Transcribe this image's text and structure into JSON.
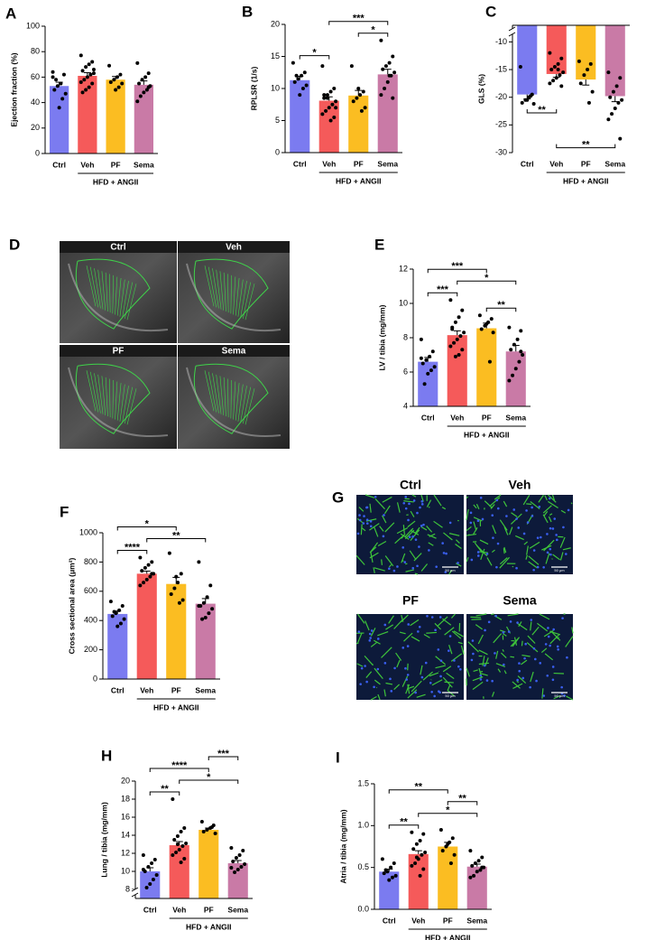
{
  "chart_data": [
    {
      "type": "bar",
      "panel": "A",
      "ylabel": "Ejection fraction (%)",
      "categories": [
        "Ctrl",
        "Veh",
        "PF",
        "Sema"
      ],
      "group_label": "HFD + ANGII",
      "colors": [
        "#7b7bf0",
        "#f55a5a",
        "#fbbd22",
        "#c97aa6"
      ],
      "values": [
        53,
        61,
        58,
        54
      ],
      "errors": [
        3,
        2.5,
        2.5,
        3
      ],
      "points": [
        [
          64,
          62,
          55,
          53,
          50,
          47,
          43,
          36,
          58,
          60
        ],
        [
          77,
          72,
          70,
          68,
          65,
          63,
          62,
          60,
          58,
          56,
          55,
          52,
          50,
          48,
          66
        ],
        [
          69,
          62,
          60,
          58,
          56,
          55,
          52,
          50
        ],
        [
          71,
          63,
          60,
          58,
          55,
          53,
          50,
          48,
          45,
          41,
          52
        ]
      ],
      "ylim": [
        0,
        100
      ],
      "yticks": [
        0,
        20,
        40,
        60,
        80,
        100
      ],
      "brackets": []
    },
    {
      "type": "bar",
      "panel": "B",
      "ylabel": "RPLSR (1/s)",
      "categories": [
        "Ctrl",
        "Veh",
        "PF",
        "Sema"
      ],
      "group_label": "HFD + ANGII",
      "colors": [
        "#7b7bf0",
        "#f55a5a",
        "#fbbd22",
        "#c97aa6"
      ],
      "values": [
        11.3,
        8.1,
        8.9,
        12.2
      ],
      "errors": [
        0.6,
        0.6,
        0.8,
        0.8
      ],
      "points": [
        [
          14,
          12.5,
          12,
          11.5,
          11,
          10.5,
          10,
          9,
          12
        ],
        [
          13.5,
          10,
          9.5,
          9,
          8.5,
          8,
          7.5,
          7,
          6.5,
          6,
          5.5,
          5,
          8.5,
          9,
          7
        ],
        [
          13.5,
          9.5,
          9,
          8.5,
          8,
          7,
          6.5,
          10
        ],
        [
          17.5,
          15,
          14,
          13.5,
          13,
          12.5,
          12,
          11,
          10,
          9,
          8.5,
          12
        ]
      ],
      "ylim": [
        0,
        20
      ],
      "yticks": [
        0,
        5,
        10,
        15,
        20
      ],
      "brackets": [
        {
          "between": [
            "Ctrl",
            "Veh"
          ],
          "label": "*"
        },
        {
          "between": [
            "PF",
            "Sema"
          ],
          "label": "*"
        },
        {
          "between": [
            "Veh",
            "Sema"
          ],
          "label": "***"
        }
      ]
    },
    {
      "type": "bar",
      "panel": "C",
      "ylabel": "GLS (%)",
      "categories": [
        "Ctrl",
        "Veh",
        "PF",
        "Sema"
      ],
      "group_label": "HFD + ANGII",
      "colors": [
        "#7b7bf0",
        "#f55a5a",
        "#fbbd22",
        "#c97aa6"
      ],
      "values": [
        -19.5,
        -15.8,
        -16.8,
        -19.8
      ],
      "errors": [
        0.8,
        0.6,
        1.0,
        1.0
      ],
      "points": [
        [
          -14.5,
          -19.5,
          -20,
          -20.5,
          -21,
          -21.2,
          -19.8,
          -20.5
        ],
        [
          -12,
          -13,
          -14,
          -14.5,
          -15,
          -15.5,
          -16,
          -16.5,
          -17,
          -17.5,
          -18,
          -15
        ],
        [
          -13.5,
          -14,
          -15,
          -16,
          -17.5,
          -19,
          -21
        ],
        [
          -15.5,
          -16.5,
          -18,
          -19,
          -20,
          -20.5,
          -21,
          -22,
          -23,
          -24,
          -27.5
        ]
      ],
      "ylim": [
        -30,
        -7
      ],
      "yticks": [
        -30,
        -25,
        -20,
        -15,
        -10
      ],
      "axis_break": "top",
      "brackets_position": "bottom",
      "brackets": [
        {
          "between": [
            "Ctrl",
            "Veh"
          ],
          "label": "**"
        },
        {
          "between": [
            "Veh",
            "Sema"
          ],
          "label": "**"
        }
      ]
    },
    {
      "type": "bar",
      "panel": "E",
      "ylabel": "LV / tibia (mg/mm)",
      "categories": [
        "Ctrl",
        "Veh",
        "PF",
        "Sema"
      ],
      "group_label": "HFD + ANGII",
      "colors": [
        "#7b7bf0",
        "#f55a5a",
        "#fbbd22",
        "#c97aa6"
      ],
      "values": [
        6.6,
        8.15,
        8.55,
        7.2
      ],
      "errors": [
        0.25,
        0.25,
        0.3,
        0.35
      ],
      "points": [
        [
          7.9,
          7.2,
          6.9,
          6.7,
          6.5,
          6.3,
          6.1,
          5.9,
          5.3,
          6.8
        ],
        [
          10.2,
          9.6,
          9.2,
          8.9,
          8.6,
          8.3,
          8.1,
          7.9,
          7.7,
          7.5,
          7.3,
          7.0,
          6.9,
          8.5
        ],
        [
          9.3,
          9.1,
          8.9,
          8.7,
          8.5,
          8.3,
          6.6,
          8.8
        ],
        [
          8.6,
          8.4,
          7.9,
          7.6,
          7.3,
          7.0,
          6.6,
          6.2,
          5.8,
          5.5,
          7.2
        ]
      ],
      "ylim": [
        4,
        12
      ],
      "yticks": [
        4,
        6,
        8,
        10,
        12
      ],
      "brackets": [
        {
          "between": [
            "PF",
            "Sema"
          ],
          "label": "**"
        },
        {
          "between": [
            "Ctrl",
            "Veh"
          ],
          "label": "***"
        },
        {
          "between": [
            "Veh",
            "Sema"
          ],
          "label": "*"
        },
        {
          "between": [
            "Ctrl",
            "PF"
          ],
          "label": "***"
        }
      ]
    },
    {
      "type": "bar",
      "panel": "F",
      "ylabel": "Cross sectional area (μm²)",
      "categories": [
        "Ctrl",
        "Veh",
        "PF",
        "Sema"
      ],
      "group_label": "HFD + ANGII",
      "colors": [
        "#7b7bf0",
        "#f55a5a",
        "#fbbd22",
        "#c97aa6"
      ],
      "values": [
        445,
        720,
        650,
        515
      ],
      "errors": [
        20,
        18,
        45,
        35
      ],
      "points": [
        [
          530,
          500,
          470,
          450,
          430,
          410,
          380,
          360,
          460
        ],
        [
          830,
          800,
          780,
          760,
          740,
          720,
          700,
          680,
          660,
          640,
          720
        ],
        [
          860,
          720,
          660,
          620,
          580,
          540,
          520,
          700
        ],
        [
          800,
          640,
          560,
          520,
          500,
          480,
          450,
          420,
          410,
          500
        ]
      ],
      "ylim": [
        0,
        1000
      ],
      "yticks": [
        0,
        200,
        400,
        600,
        800,
        1000
      ],
      "brackets": [
        {
          "between": [
            "Ctrl",
            "Veh"
          ],
          "label": "****"
        },
        {
          "between": [
            "Veh",
            "Sema"
          ],
          "label": "**"
        },
        {
          "between": [
            "Ctrl",
            "PF"
          ],
          "label": "*"
        }
      ]
    },
    {
      "type": "bar",
      "panel": "H",
      "ylabel": "Lung / tibia (mg/mm)",
      "categories": [
        "Ctrl",
        "Veh",
        "PF",
        "Sema"
      ],
      "group_label": "HFD + ANGII",
      "colors": [
        "#7b7bf0",
        "#f55a5a",
        "#fbbd22",
        "#c97aa6"
      ],
      "values": [
        10,
        12.9,
        14.6,
        10.9
      ],
      "errors": [
        0.4,
        0.4,
        0.2,
        0.3
      ],
      "points": [
        [
          11.8,
          11.3,
          10.9,
          10.5,
          10,
          9.6,
          9.1,
          8.6,
          8.2,
          10.2
        ],
        [
          18,
          14.8,
          14.4,
          13.9,
          13.5,
          13.1,
          12.8,
          12.4,
          12.1,
          11.8,
          11.4,
          11,
          13
        ],
        [
          15.5,
          15.1,
          14.8,
          14.6,
          14.4,
          14.2,
          14.9
        ],
        [
          12.6,
          12.3,
          11.8,
          11.5,
          11.1,
          10.8,
          10.5,
          10.2,
          9.9,
          10.4
        ]
      ],
      "ylim": [
        7,
        20
      ],
      "yticks": [
        8,
        10,
        12,
        14,
        16,
        18,
        20
      ],
      "axis_break": "bottom",
      "brackets": [
        {
          "between": [
            "Ctrl",
            "Veh"
          ],
          "label": "**"
        },
        {
          "between": [
            "Veh",
            "Sema"
          ],
          "label": "*"
        },
        {
          "between": [
            "Ctrl",
            "PF"
          ],
          "label": "****"
        },
        {
          "between": [
            "PF",
            "Sema"
          ],
          "label": "***"
        }
      ]
    },
    {
      "type": "bar",
      "panel": "I",
      "ylabel": "Atria / tibia (mg/mm)",
      "categories": [
        "Ctrl",
        "Veh",
        "PF",
        "Sema"
      ],
      "group_label": "HFD + ANGII",
      "colors": [
        "#7b7bf0",
        "#f55a5a",
        "#fbbd22",
        "#c97aa6"
      ],
      "values": [
        0.45,
        0.66,
        0.75,
        0.51
      ],
      "errors": [
        0.03,
        0.04,
        0.05,
        0.03
      ],
      "points": [
        [
          0.6,
          0.55,
          0.5,
          0.45,
          0.43,
          0.4,
          0.38,
          0.35,
          0.47
        ],
        [
          0.92,
          0.9,
          0.82,
          0.78,
          0.72,
          0.68,
          0.65,
          0.6,
          0.55,
          0.52,
          0.48,
          0.4,
          0.62
        ],
        [
          0.95,
          0.85,
          0.8,
          0.75,
          0.7,
          0.65,
          0.55,
          0.78
        ],
        [
          0.7,
          0.62,
          0.58,
          0.55,
          0.52,
          0.5,
          0.47,
          0.45,
          0.4,
          0.38,
          0.5
        ]
      ],
      "ylim": [
        0,
        1.5
      ],
      "yticks": [
        {
          "value": 0,
          "label": "0.0"
        },
        0.5,
        {
          "value": 1,
          "label": "1.0"
        },
        1.5
      ],
      "brackets": [
        {
          "between": [
            "Ctrl",
            "Veh"
          ],
          "label": "**"
        },
        {
          "between": [
            "Veh",
            "Sema"
          ],
          "label": "*"
        },
        {
          "between": [
            "PF",
            "Sema"
          ],
          "label": "**"
        },
        {
          "between": [
            "Ctrl",
            "PF"
          ],
          "label": "**"
        }
      ]
    }
  ],
  "image_panels": [
    {
      "panel": "D",
      "images": [
        {
          "label": "Ctrl"
        },
        {
          "label": "Veh"
        },
        {
          "label": "PF"
        },
        {
          "label": "Sema"
        }
      ]
    },
    {
      "panel": "G",
      "images": [
        {
          "label": "Ctrl",
          "scale_bar": "50 μm"
        },
        {
          "label": "Veh",
          "scale_bar": "50 μm"
        },
        {
          "label": "PF",
          "scale_bar": "50 μm"
        },
        {
          "label": "Sema",
          "scale_bar": "50 μm"
        }
      ]
    }
  ]
}
